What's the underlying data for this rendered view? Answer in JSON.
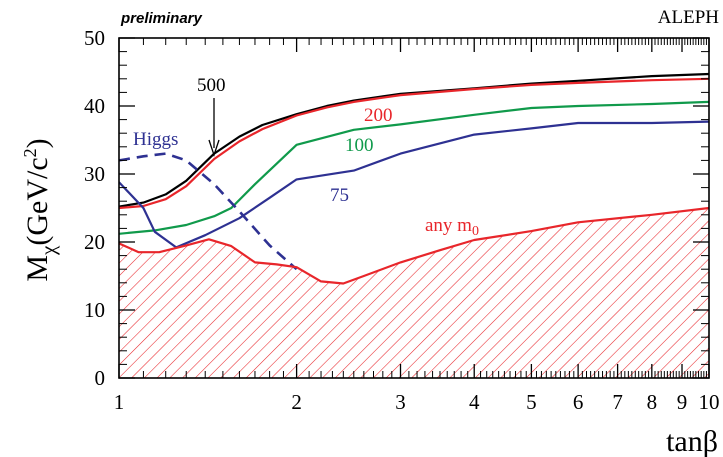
{
  "header": {
    "preliminary": "preliminary",
    "experiment": "ALEPH"
  },
  "chart_data": {
    "type": "line",
    "title": "",
    "xlabel": "tanβ",
    "ylabel_main": "M",
    "ylabel_sub": "χ",
    "ylabel_units": "(GeV/c",
    "ylabel_sup": "2",
    "ylabel_close": ")",
    "x_scale": "log",
    "xlim": [
      1,
      10
    ],
    "ylim": [
      0,
      50
    ],
    "x_ticks": [
      {
        "value": 1,
        "label": "1"
      },
      {
        "value": 2,
        "label": "2"
      },
      {
        "value": 3,
        "label": "3"
      },
      {
        "value": 4,
        "label": "4"
      },
      {
        "value": 5,
        "label": "5"
      },
      {
        "value": 6,
        "label": "6"
      },
      {
        "value": 7,
        "label": "7"
      },
      {
        "value": 8,
        "label": "8"
      },
      {
        "value": 9,
        "label": "9"
      },
      {
        "value": 10,
        "label": "10"
      }
    ],
    "y_ticks": [
      {
        "value": 0,
        "label": "0"
      },
      {
        "value": 10,
        "label": "10"
      },
      {
        "value": 20,
        "label": "20"
      },
      {
        "value": 30,
        "label": "30"
      },
      {
        "value": 40,
        "label": "40"
      },
      {
        "value": 50,
        "label": "50"
      }
    ],
    "grid": false,
    "series": [
      {
        "key": "m500",
        "name": "500",
        "color": "#000000",
        "dashed": false,
        "x": [
          1,
          1.1,
          1.2,
          1.3,
          1.45,
          1.6,
          1.75,
          2,
          2.25,
          2.5,
          3,
          4,
          5,
          6,
          8,
          10
        ],
        "y": [
          25.2,
          25.8,
          27.0,
          29.0,
          33.0,
          35.5,
          37.2,
          38.8,
          40.0,
          40.8,
          41.8,
          42.6,
          43.3,
          43.7,
          44.4,
          44.7
        ]
      },
      {
        "key": "m200",
        "name": "200",
        "color": "#e8262b",
        "dashed": false,
        "x": [
          1,
          1.1,
          1.2,
          1.3,
          1.45,
          1.6,
          1.75,
          2,
          2.25,
          2.5,
          3,
          4,
          5,
          6,
          8,
          10
        ],
        "y": [
          25.0,
          25.3,
          26.3,
          28.2,
          32.2,
          34.8,
          36.6,
          38.6,
          39.8,
          40.6,
          41.6,
          42.5,
          43.1,
          43.4,
          43.8,
          44.0
        ]
      },
      {
        "key": "m100",
        "name": "100",
        "color": "#109a4b",
        "dashed": false,
        "x": [
          1,
          1.15,
          1.3,
          1.45,
          1.55,
          1.7,
          2,
          2.5,
          3,
          4,
          5,
          6,
          8,
          10
        ],
        "y": [
          21.2,
          21.7,
          22.5,
          23.8,
          25.0,
          28.5,
          34.3,
          36.5,
          37.3,
          38.7,
          39.7,
          40.0,
          40.3,
          40.6
        ]
      },
      {
        "key": "m75",
        "name": "75",
        "color": "#2e3192",
        "dashed": false,
        "x": [
          1,
          1.1,
          1.15,
          1.25,
          1.4,
          1.6,
          1.8,
          2,
          2.5,
          3,
          4,
          5,
          6,
          8,
          10
        ],
        "y": [
          28.8,
          25.0,
          21.5,
          19.2,
          21.0,
          23.5,
          26.5,
          29.2,
          30.5,
          33.0,
          35.8,
          36.7,
          37.5,
          37.5,
          37.7
        ]
      },
      {
        "key": "higgs",
        "name": "Higgs",
        "color": "#2e3192",
        "dashed": true,
        "x": [
          1,
          1.1,
          1.2,
          1.3,
          1.45,
          1.6,
          1.8,
          2.0
        ],
        "y": [
          32.0,
          32.6,
          33.0,
          32.0,
          28.5,
          24.5,
          19.5,
          16.0
        ]
      },
      {
        "key": "any_m0",
        "name": "any m",
        "sub": "0",
        "color": "#e8262b",
        "dashed": false,
        "hatched": true,
        "x": [
          1,
          1.08,
          1.17,
          1.3,
          1.42,
          1.55,
          1.7,
          1.85,
          2,
          2.2,
          2.4,
          2.6,
          3,
          3.5,
          4,
          5,
          6,
          8,
          10
        ],
        "y": [
          19.8,
          18.5,
          18.5,
          19.5,
          20.4,
          19.4,
          17.0,
          16.7,
          16.3,
          14.2,
          13.9,
          15.0,
          17.0,
          18.8,
          20.3,
          21.6,
          22.9,
          24.0,
          25.0
        ]
      }
    ]
  },
  "annotations": {
    "label_500": "500",
    "label_200": "200",
    "label_100": "100",
    "label_75": "75",
    "label_higgs": "Higgs",
    "label_anym0": "any m",
    "label_anym0_sub": "0"
  }
}
